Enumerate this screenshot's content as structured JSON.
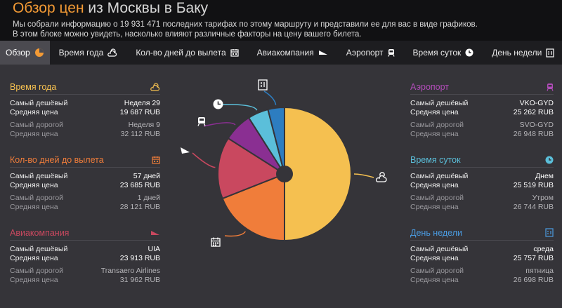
{
  "header": {
    "title_prefix": "Обзор цен",
    "title_route": " из Москвы в Баку",
    "desc_line1": "Мы собрали информацию о 19 931 471 последних тарифах по этому маршруту и представили ее для вас в виде графиков.",
    "desc_line2": "В этом блоке можно увидеть, насколько влияют различные факторы на цену вашего билета."
  },
  "tabs": [
    {
      "label": "Обзор",
      "icon": "pie-icon"
    },
    {
      "label": "Время года",
      "icon": "weather-icon"
    },
    {
      "label": "Кол-во дней до вылета",
      "icon": "calendar-icon"
    },
    {
      "label": "Авиакомпания",
      "icon": "plane-icon"
    },
    {
      "label": "Аэропорт",
      "icon": "train-icon"
    },
    {
      "label": "Время суток",
      "icon": "clock-icon"
    },
    {
      "label": "День недели",
      "icon": "day-icon"
    }
  ],
  "labels": {
    "cheapest": "Самый дешёвый",
    "avg": "Средняя цена",
    "expensive": "Самый дорогой"
  },
  "colors": {
    "season": "#f5c050",
    "days": "#f07d3a",
    "airline": "#c9485f",
    "airport": "#8a2f92",
    "time": "#5bbfda",
    "weekday": "#2d7dc0"
  },
  "panels": {
    "season": {
      "title": "Время года",
      "cheap_val": "Неделя 29",
      "cheap_price": "19 687 RUB",
      "exp_val": "Неделя 9",
      "exp_price": "32 112 RUB"
    },
    "days": {
      "title": "Кол-во дней до вылета",
      "cheap_val": "57 дней",
      "cheap_price": "23 685 RUB",
      "exp_val": "1 дней",
      "exp_price": "28 121 RUB"
    },
    "airline": {
      "title": "Авиакомпания",
      "cheap_val": "UIA",
      "cheap_price": "23 913 RUB",
      "exp_val": "Transaero Airlines",
      "exp_price": "31 962 RUB"
    },
    "airport": {
      "title": "Аэропорт",
      "cheap_val": "VKO-GYD",
      "cheap_price": "25 262 RUB",
      "exp_val": "SVO-GYD",
      "exp_price": "26 948 RUB"
    },
    "time": {
      "title": "Время суток",
      "cheap_val": "Днем",
      "cheap_price": "25 519 RUB",
      "exp_val": "Утром",
      "exp_price": "26 744 RUB"
    },
    "weekday": {
      "title": "День недели",
      "cheap_val": "среда",
      "cheap_price": "25 757 RUB",
      "exp_val": "пятница",
      "exp_price": "26 698 RUB"
    }
  },
  "chart_data": {
    "type": "pie",
    "categories": [
      "Время года",
      "Кол-во дней до вылета",
      "Авиакомпания",
      "Аэропорт",
      "Время суток",
      "День недели"
    ],
    "values": [
      50,
      19,
      15,
      7,
      5,
      4
    ],
    "colors": [
      "#f5c050",
      "#f07d3a",
      "#c9485f",
      "#8a2f92",
      "#5bbfda",
      "#2d7dc0"
    ]
  }
}
